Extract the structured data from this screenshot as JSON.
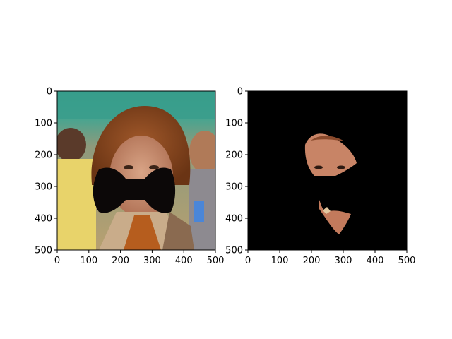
{
  "figure": {
    "background": "#ffffff",
    "panels": [
      {
        "name": "left",
        "content": "photo-with-bowtie-mask",
        "mask_color": "#0c0808"
      },
      {
        "name": "right",
        "content": "masked-face-region",
        "background": "#000000"
      }
    ]
  },
  "chart_data": [
    {
      "type": "image",
      "xlim": [
        0,
        500
      ],
      "ylim": [
        500,
        0
      ],
      "xticks": [
        0,
        100,
        200,
        300,
        400,
        500
      ],
      "yticks": [
        0,
        100,
        200,
        300,
        400,
        500
      ],
      "grid": false,
      "title": "",
      "xlabel": "",
      "ylabel": ""
    },
    {
      "type": "image",
      "xlim": [
        0,
        500
      ],
      "ylim": [
        500,
        0
      ],
      "xticks": [
        0,
        100,
        200,
        300,
        400,
        500
      ],
      "yticks": [
        0,
        100,
        200,
        300,
        400,
        500
      ],
      "grid": false,
      "title": "",
      "xlabel": "",
      "ylabel": ""
    }
  ]
}
